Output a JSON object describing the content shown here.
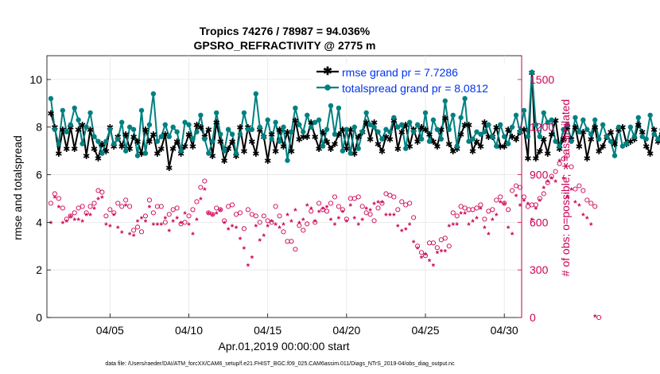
{
  "chart_data": {
    "type": "line",
    "title_line1": "Tropics 74276 / 78987 = 94.036%",
    "title_line2": "GPSRO_REFRACTIVITY @ 2775 m",
    "xlabel": "Apr.01,2019 00:00:00 start",
    "ylabel_left": "rmse and totalspread",
    "ylabel_right": "# of obs: o=possible; ∗=assimilated",
    "footer": "data file: /Users/raeder/DAI/ATM_forcXX/CAM6_setup/f.e21.FHIST_BGC.f09_025.CAM6assim.011/Diags_NTrS_2019-04/obs_diag_output.nc",
    "xlim": [
      1.0,
      31.1
    ],
    "ylim_left": [
      0,
      11
    ],
    "ylim_right": [
      0,
      1650
    ],
    "x_ticks": [
      {
        "value": 5,
        "label": "04/05"
      },
      {
        "value": 10,
        "label": "04/10"
      },
      {
        "value": 15,
        "label": "04/15"
      },
      {
        "value": 20,
        "label": "04/20"
      },
      {
        "value": 25,
        "label": "04/25"
      },
      {
        "value": 30,
        "label": "04/30"
      }
    ],
    "y_ticks_left": [
      0,
      2,
      4,
      6,
      8,
      10
    ],
    "y_ticks_right": [
      0,
      300,
      600,
      900,
      1200,
      1500
    ],
    "legend": [
      {
        "name": "rmse grand pr = 7.7286",
        "color": "#000000",
        "marker": "star"
      },
      {
        "name": "totalspread grand pr = 8.0812",
        "color": "#008080",
        "marker": "circle"
      }
    ],
    "colors": {
      "rmse": "#000000",
      "spread": "#008080",
      "obs": "#cc0055",
      "legend_text": "#0033ee",
      "axis": "#000000"
    },
    "x_start": 1.25,
    "x_step": 0.25,
    "series": [
      {
        "name": "rmse",
        "axis": "left",
        "values": [
          8.6,
          8.0,
          6.9,
          7.9,
          7.1,
          8.0,
          7.1,
          7.9,
          8.1,
          6.8,
          7.9,
          7.1,
          6.7,
          7.3,
          7.0,
          8.0,
          7.2,
          7.6,
          7.2,
          7.7,
          7.1,
          7.6,
          7.4,
          6.9,
          7.9,
          7.4,
          7.7,
          6.9,
          7.1,
          7.7,
          6.3,
          7.1,
          7.4,
          6.9,
          7.2,
          7.7,
          7.2,
          8.1,
          8.0,
          7.6,
          7.9,
          6.8,
          8.2,
          7.4,
          6.6,
          7.1,
          7.4,
          6.8,
          8.0,
          7.0,
          8.0,
          7.4,
          6.9,
          7.9,
          7.6,
          6.6,
          7.7,
          7.0,
          7.9,
          7.2,
          7.8,
          7.0,
          8.3,
          7.5,
          7.6,
          7.6,
          8.2,
          7.6,
          7.1,
          7.8,
          7.4,
          7.1,
          7.3,
          7.7,
          7.9,
          7.1,
          7.9,
          6.9,
          7.6,
          7.8,
          8.2,
          7.5,
          8.2,
          7.3,
          7.0,
          7.6,
          7.5,
          8.3,
          7.1,
          7.8,
          8.1,
          7.2,
          7.9,
          7.4,
          8.0,
          7.9,
          7.7,
          7.4,
          7.2,
          7.9,
          8.4,
          7.3,
          7.0,
          7.1,
          7.7,
          8.1,
          8.1,
          7.0,
          7.4,
          7.2,
          8.2,
          7.6,
          7.6,
          8.0,
          7.2,
          7.2,
          7.9,
          7.6,
          7.5,
          7.8,
          7.9,
          6.7,
          10.3,
          6.7,
          7.0,
          7.5,
          6.9,
          7.7,
          8.3,
          7.1,
          7.5,
          8.0,
          7.5,
          8.0,
          7.2,
          7.8,
          6.7,
          7.5,
          8.0,
          7.0,
          7.2,
          7.6,
          7.8,
          7.3,
          7.9,
          8.0,
          7.3,
          7.4,
          7.5,
          8.1,
          7.8,
          7.2,
          6.9,
          7.9,
          7.4,
          7.7,
          7.9,
          7.3,
          7.2,
          7.6,
          7.7,
          7.8,
          7.9,
          7.8,
          7.7,
          7.4,
          8.0,
          7.5,
          7.1,
          7.9,
          7.4,
          7.3
        ]
      },
      {
        "name": "totalspread",
        "axis": "left",
        "values": [
          9.2,
          7.9,
          7.3,
          8.7,
          7.8,
          8.1,
          8.8,
          8.3,
          7.3,
          8.0,
          8.6,
          7.6,
          7.4,
          6.9,
          7.4,
          7.9,
          7.3,
          7.5,
          8.2,
          7.0,
          8.0,
          7.9,
          6.8,
          8.7,
          6.9,
          8.1,
          9.4,
          7.4,
          7.6,
          8.1,
          7.6,
          8.0,
          7.8,
          7.0,
          8.2,
          8.1,
          7.5,
          7.8,
          8.5,
          7.5,
          6.9,
          7.4,
          8.6,
          7.7,
          7.0,
          7.9,
          7.7,
          6.9,
          7.7,
          8.6,
          7.9,
          7.9,
          9.4,
          8.0,
          7.6,
          8.3,
          7.5,
          8.2,
          7.4,
          8.0,
          6.6,
          7.8,
          8.8,
          8.1,
          7.8,
          8.5,
          8.0,
          8.2,
          8.3,
          7.2,
          7.9,
          8.9,
          7.7,
          8.8,
          7.0,
          7.9,
          6.9,
          8.0,
          7.1,
          7.8,
          8.6,
          8.1,
          8.0,
          7.8,
          7.5,
          7.9,
          7.8,
          8.4,
          8.0,
          8.1,
          7.1,
          8.2,
          7.8,
          8.1,
          7.5,
          8.6,
          7.4,
          8.3,
          7.9,
          7.5,
          9.1,
          7.9,
          8.5,
          7.2,
          8.4,
          9.2,
          7.4,
          7.5,
          7.8,
          7.7,
          7.8,
          8.1,
          7.6,
          7.2,
          8.1,
          7.6,
          7.3,
          8.0,
          8.5,
          7.8,
          8.7,
          7.6,
          10.3,
          8.1,
          7.6,
          8.6,
          8.2,
          8.3,
          7.4,
          7.2,
          7.9,
          8.1,
          7.4,
          8.4,
          7.8,
          8.3,
          7.9,
          7.7,
          8.3,
          7.5,
          8.1,
          7.6,
          7.4,
          6.8,
          8.0,
          7.2,
          7.3,
          8.0,
          7.6,
          8.4,
          7.6,
          7.5,
          8.5,
          7.7,
          7.5,
          7.9,
          8.8,
          7.8,
          8.4,
          7.5,
          7.9,
          8.4,
          7.2,
          8.1,
          7.8,
          8.6,
          7.6,
          8.6,
          7.3,
          7.2,
          8.5,
          8.3,
          7.3,
          7.1
        ]
      },
      {
        "name": "obs possible",
        "axis": "right",
        "values": [
          720,
          780,
          750,
          690,
          620,
          640,
          660,
          690,
          700,
          660,
          700,
          720,
          800,
          790,
          640,
          680,
          660,
          720,
          700,
          740,
          700,
          550,
          570,
          540,
          640,
          740,
          660,
          700,
          700,
          600,
          650,
          680,
          690,
          590,
          600,
          640,
          680,
          730,
          820,
          860,
          660,
          650,
          690,
          680,
          610,
          700,
          710,
          650,
          660,
          560,
          680,
          650,
          640,
          600,
          640,
          610,
          600,
          700,
          640,
          540,
          480,
          480,
          430,
          580,
          550,
          590,
          670,
          600,
          720,
          680,
          670,
          720,
          760,
          700,
          680,
          620,
          750,
          750,
          760,
          700,
          660,
          650,
          610,
          690,
          720,
          780,
          770,
          760,
          680,
          730,
          710,
          720,
          630,
          450,
          410,
          390,
          470,
          470,
          440,
          490,
          500,
          450,
          660,
          640,
          700,
          690,
          680,
          680,
          690,
          710,
          620,
          670,
          680,
          740,
          760,
          720,
          680,
          800,
          830,
          820,
          760,
          700,
          710,
          710,
          750,
          780,
          850,
          890,
          920,
          970,
          1000,
          1020,
          950,
          810,
          830,
          800,
          740,
          720,
          700,
          0
        ]
      },
      {
        "name": "obs assimilated",
        "axis": "right",
        "values": [
          590,
          750,
          690,
          590,
          600,
          630,
          610,
          610,
          600,
          640,
          640,
          680,
          740,
          750,
          580,
          570,
          640,
          560,
          530,
          700,
          520,
          510,
          600,
          620,
          600,
          690,
          580,
          580,
          580,
          620,
          540,
          600,
          620,
          590,
          650,
          580,
          520,
          610,
          740,
          800,
          650,
          640,
          650,
          670,
          590,
          550,
          570,
          560,
          490,
          430,
          320,
          370,
          570,
          480,
          510,
          570,
          600,
          580,
          560,
          580,
          640,
          600,
          670,
          590,
          610,
          700,
          680,
          600,
          660,
          680,
          690,
          610,
          580,
          620,
          660,
          600,
          700,
          620,
          580,
          610,
          680,
          670,
          710,
          720,
          720,
          640,
          640,
          640,
          570,
          540,
          550,
          580,
          470,
          430,
          370,
          390,
          350,
          320,
          400,
          410,
          410,
          570,
          580,
          580,
          650,
          650,
          580,
          600,
          620,
          680,
          560,
          520,
          610,
          640,
          720,
          710,
          560,
          520,
          760,
          700,
          730,
          710,
          610,
          680,
          730,
          810,
          850,
          870,
          850,
          980,
          870,
          750,
          800,
          720,
          700,
          640,
          620,
          580,
          0
        ]
      }
    ]
  }
}
